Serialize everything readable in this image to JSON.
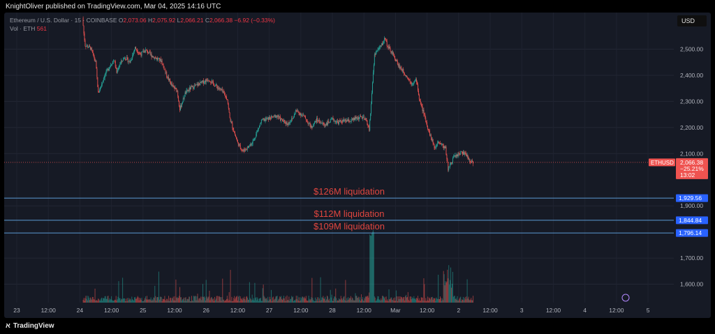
{
  "header": {
    "publisher_line": "KnightOliver published on TradingView.com, Mar 04, 2025 14:16 UTC"
  },
  "legend": {
    "symbol": "Ethereum / U.S. Dollar · 15 · COINBASE",
    "open_label": "O",
    "open": "2,073.06",
    "high_label": "H",
    "high": "2,075.92",
    "low_label": "L",
    "low": "2,066.21",
    "close_label": "C",
    "close": "2,066.38",
    "change": "−6.92 (−0.33%)",
    "vol_label": "Vol · ETH",
    "vol_value": "561"
  },
  "currency_button": "USD",
  "footer": {
    "brand": "TradingView"
  },
  "colors": {
    "up": "#26a69a",
    "down": "#ef5350",
    "accent": "#2962ff",
    "annotation": "#e0463f",
    "background": "#161a25"
  },
  "chart_data": {
    "type": "candlestick",
    "symbol": "ETHUSD",
    "timeframe": "15",
    "ylim": [
      1560,
      2620
    ],
    "y_ticks": [
      {
        "value": 2500,
        "label": "2,500.00"
      },
      {
        "value": 2400,
        "label": "2,400.00"
      },
      {
        "value": 2300,
        "label": "2,300.00"
      },
      {
        "value": 2200,
        "label": "2,200.00"
      },
      {
        "value": 2100,
        "label": "2,100.00"
      },
      {
        "value": 1900,
        "label": "1,900.00"
      },
      {
        "value": 1700,
        "label": "1,700.00"
      },
      {
        "value": 1600,
        "label": "1,600.00"
      }
    ],
    "x_ticks": [
      {
        "t": 0,
        "label": "23"
      },
      {
        "t": 12,
        "label": "12:00"
      },
      {
        "t": 24,
        "label": "24"
      },
      {
        "t": 36,
        "label": "12:00"
      },
      {
        "t": 48,
        "label": "25"
      },
      {
        "t": 60,
        "label": "12:00"
      },
      {
        "t": 72,
        "label": "26"
      },
      {
        "t": 84,
        "label": "12:00"
      },
      {
        "t": 96,
        "label": "27"
      },
      {
        "t": 108,
        "label": "12:00"
      },
      {
        "t": 120,
        "label": "28"
      },
      {
        "t": 132,
        "label": "12:00"
      },
      {
        "t": 144,
        "label": "Mar"
      },
      {
        "t": 156,
        "label": "12:00"
      },
      {
        "t": 168,
        "label": "2"
      },
      {
        "t": 180,
        "label": "12:00"
      },
      {
        "t": 192,
        "label": "3"
      },
      {
        "t": 204,
        "label": "12:00"
      },
      {
        "t": 216,
        "label": "4"
      },
      {
        "t": 228,
        "label": "12:00"
      },
      {
        "t": 240,
        "label": "5"
      }
    ],
    "price_path": [
      [
        25,
        2620
      ],
      [
        25.5,
        2560
      ],
      [
        26,
        2515
      ],
      [
        28,
        2505
      ],
      [
        30,
        2450
      ],
      [
        31,
        2330
      ],
      [
        33,
        2390
      ],
      [
        35,
        2430
      ],
      [
        37,
        2460
      ],
      [
        38,
        2410
      ],
      [
        39,
        2440
      ],
      [
        41,
        2470
      ],
      [
        43,
        2450
      ],
      [
        45,
        2505
      ],
      [
        47,
        2480
      ],
      [
        49,
        2495
      ],
      [
        52,
        2470
      ],
      [
        55,
        2455
      ],
      [
        57,
        2400
      ],
      [
        59,
        2360
      ],
      [
        61,
        2340
      ],
      [
        62,
        2270
      ],
      [
        64,
        2330
      ],
      [
        66,
        2350
      ],
      [
        70,
        2370
      ],
      [
        73,
        2385
      ],
      [
        75,
        2365
      ],
      [
        78,
        2340
      ],
      [
        80,
        2310
      ],
      [
        81,
        2235
      ],
      [
        84,
        2140
      ],
      [
        86,
        2110
      ],
      [
        88,
        2125
      ],
      [
        90,
        2150
      ],
      [
        93,
        2225
      ],
      [
        96,
        2235
      ],
      [
        99,
        2245
      ],
      [
        101,
        2225
      ],
      [
        103,
        2215
      ],
      [
        105,
        2235
      ],
      [
        106,
        2265
      ],
      [
        109,
        2245
      ],
      [
        112,
        2200
      ],
      [
        114,
        2230
      ],
      [
        117,
        2210
      ],
      [
        120,
        2230
      ],
      [
        122,
        2220
      ],
      [
        124,
        2225
      ],
      [
        127,
        2225
      ],
      [
        129,
        2235
      ],
      [
        131,
        2240
      ],
      [
        133,
        2225
      ],
      [
        134,
        2190
      ],
      [
        135,
        2330
      ],
      [
        136,
        2480
      ],
      [
        139,
        2520
      ],
      [
        140,
        2545
      ],
      [
        141,
        2510
      ],
      [
        143,
        2480
      ],
      [
        145,
        2440
      ],
      [
        148,
        2400
      ],
      [
        150,
        2370
      ],
      [
        152,
        2380
      ],
      [
        153,
        2310
      ],
      [
        155,
        2245
      ],
      [
        157,
        2175
      ],
      [
        159,
        2120
      ],
      [
        160,
        2150
      ],
      [
        163,
        2120
      ],
      [
        164,
        2040
      ],
      [
        166,
        2085
      ],
      [
        169,
        2105
      ],
      [
        171,
        2095
      ],
      [
        172,
        2075
      ],
      [
        173.5,
        2066.38
      ]
    ],
    "last_price": {
      "value": 2066.38,
      "label": "ETHUSD",
      "price": "2,066.38",
      "change": "−25.21%",
      "countdown": "13:02"
    },
    "liquidation_levels": [
      {
        "value": 1929.56,
        "price": "1,929.56",
        "text": "$126M liquidation"
      },
      {
        "value": 1844.84,
        "price": "1,844.84",
        "text": "$112M liquidation"
      },
      {
        "value": 1796.14,
        "price": "1,796.14",
        "text": "$109M liquidation"
      }
    ]
  }
}
